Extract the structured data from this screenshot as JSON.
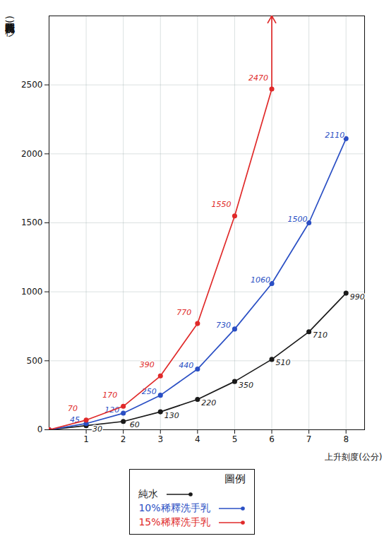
{
  "chart_data": {
    "type": "line",
    "x_label": "上升刻度(公分)",
    "y_label": "累積花費時間(秒)",
    "legend_title": "圖例",
    "x": [
      0,
      1,
      2,
      3,
      4,
      5,
      6,
      7,
      8
    ],
    "series": [
      {
        "name": "純水",
        "color": "#1a1a1a",
        "marker": "circle",
        "values": [
          0,
          30,
          60,
          130,
          220,
          350,
          510,
          710,
          990
        ],
        "value_labels": [
          null,
          "30",
          "60",
          "130",
          "220",
          "350",
          "510",
          "710",
          "990"
        ]
      },
      {
        "name": "10%稀釋洗手乳",
        "color": "#2a4fc4",
        "marker": "circle",
        "values": [
          0,
          45,
          120,
          250,
          440,
          730,
          1060,
          1500,
          2110
        ],
        "value_labels": [
          null,
          "45",
          "120",
          "250",
          "440",
          "730",
          "1060",
          "1500",
          "2110"
        ]
      },
      {
        "name": "15%稀釋洗手乳",
        "color": "#e02a2a",
        "marker": "circle",
        "values": [
          0,
          70,
          170,
          390,
          770,
          1550,
          2470,
          null,
          null
        ],
        "value_labels": [
          null,
          "70",
          "170",
          "390",
          "770",
          "1550",
          "2470",
          null,
          null
        ]
      }
    ],
    "xlim": [
      0,
      8.5
    ],
    "ylim": [
      0,
      3000
    ],
    "xticks": [
      1,
      2,
      3,
      4,
      5,
      6,
      7,
      8
    ],
    "yticks": [
      0,
      500,
      1000,
      1500,
      2000,
      2500
    ],
    "grid": true,
    "legend": "bottom",
    "data_labels": true
  }
}
